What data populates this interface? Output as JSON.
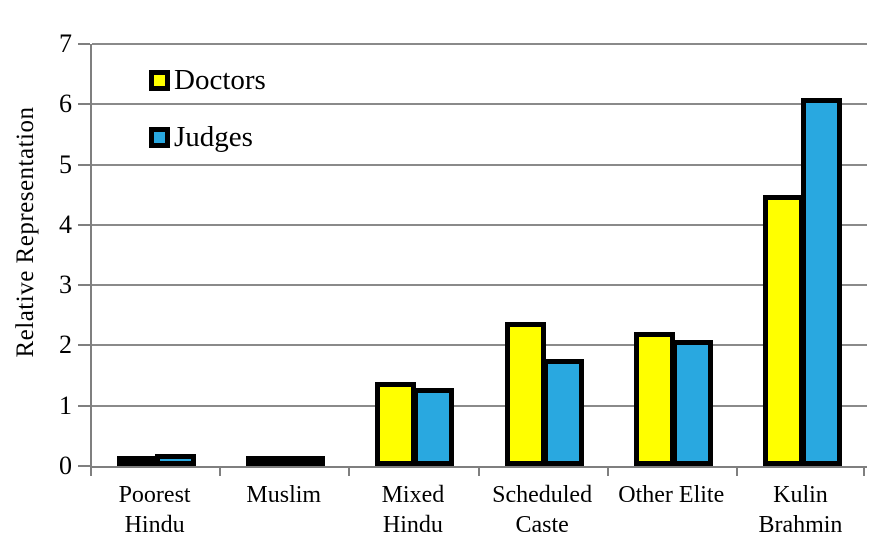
{
  "chart_data": {
    "type": "bar",
    "title": "",
    "ylabel": "Relative Representation",
    "xlabel": "",
    "categories": [
      "Poorest\nHindu",
      "Muslim",
      "Mixed\nHindu",
      "Scheduled\nCaste",
      "Other Elite",
      "Kulin\nBrahmin"
    ],
    "series": [
      {
        "name": "Doctors",
        "color": "#FFFF00",
        "values": [
          0.09,
          0.13,
          1.4,
          2.39,
          2.22,
          4.49
        ]
      },
      {
        "name": "Judges",
        "color": "#29A8E0",
        "values": [
          0.2,
          0.17,
          1.29,
          1.77,
          2.09,
          6.1
        ]
      }
    ],
    "ylim": [
      0,
      7
    ],
    "yticks": [
      0,
      1,
      2,
      3,
      4,
      5,
      6,
      7
    ],
    "grid": true,
    "legend_position": "top-left",
    "bar_outline_color": "#000000",
    "axis_color": "#7F7F7F",
    "gridline_color": "#8A8A8A",
    "background_color": "#FFFFFF",
    "text_color": "#000000"
  }
}
